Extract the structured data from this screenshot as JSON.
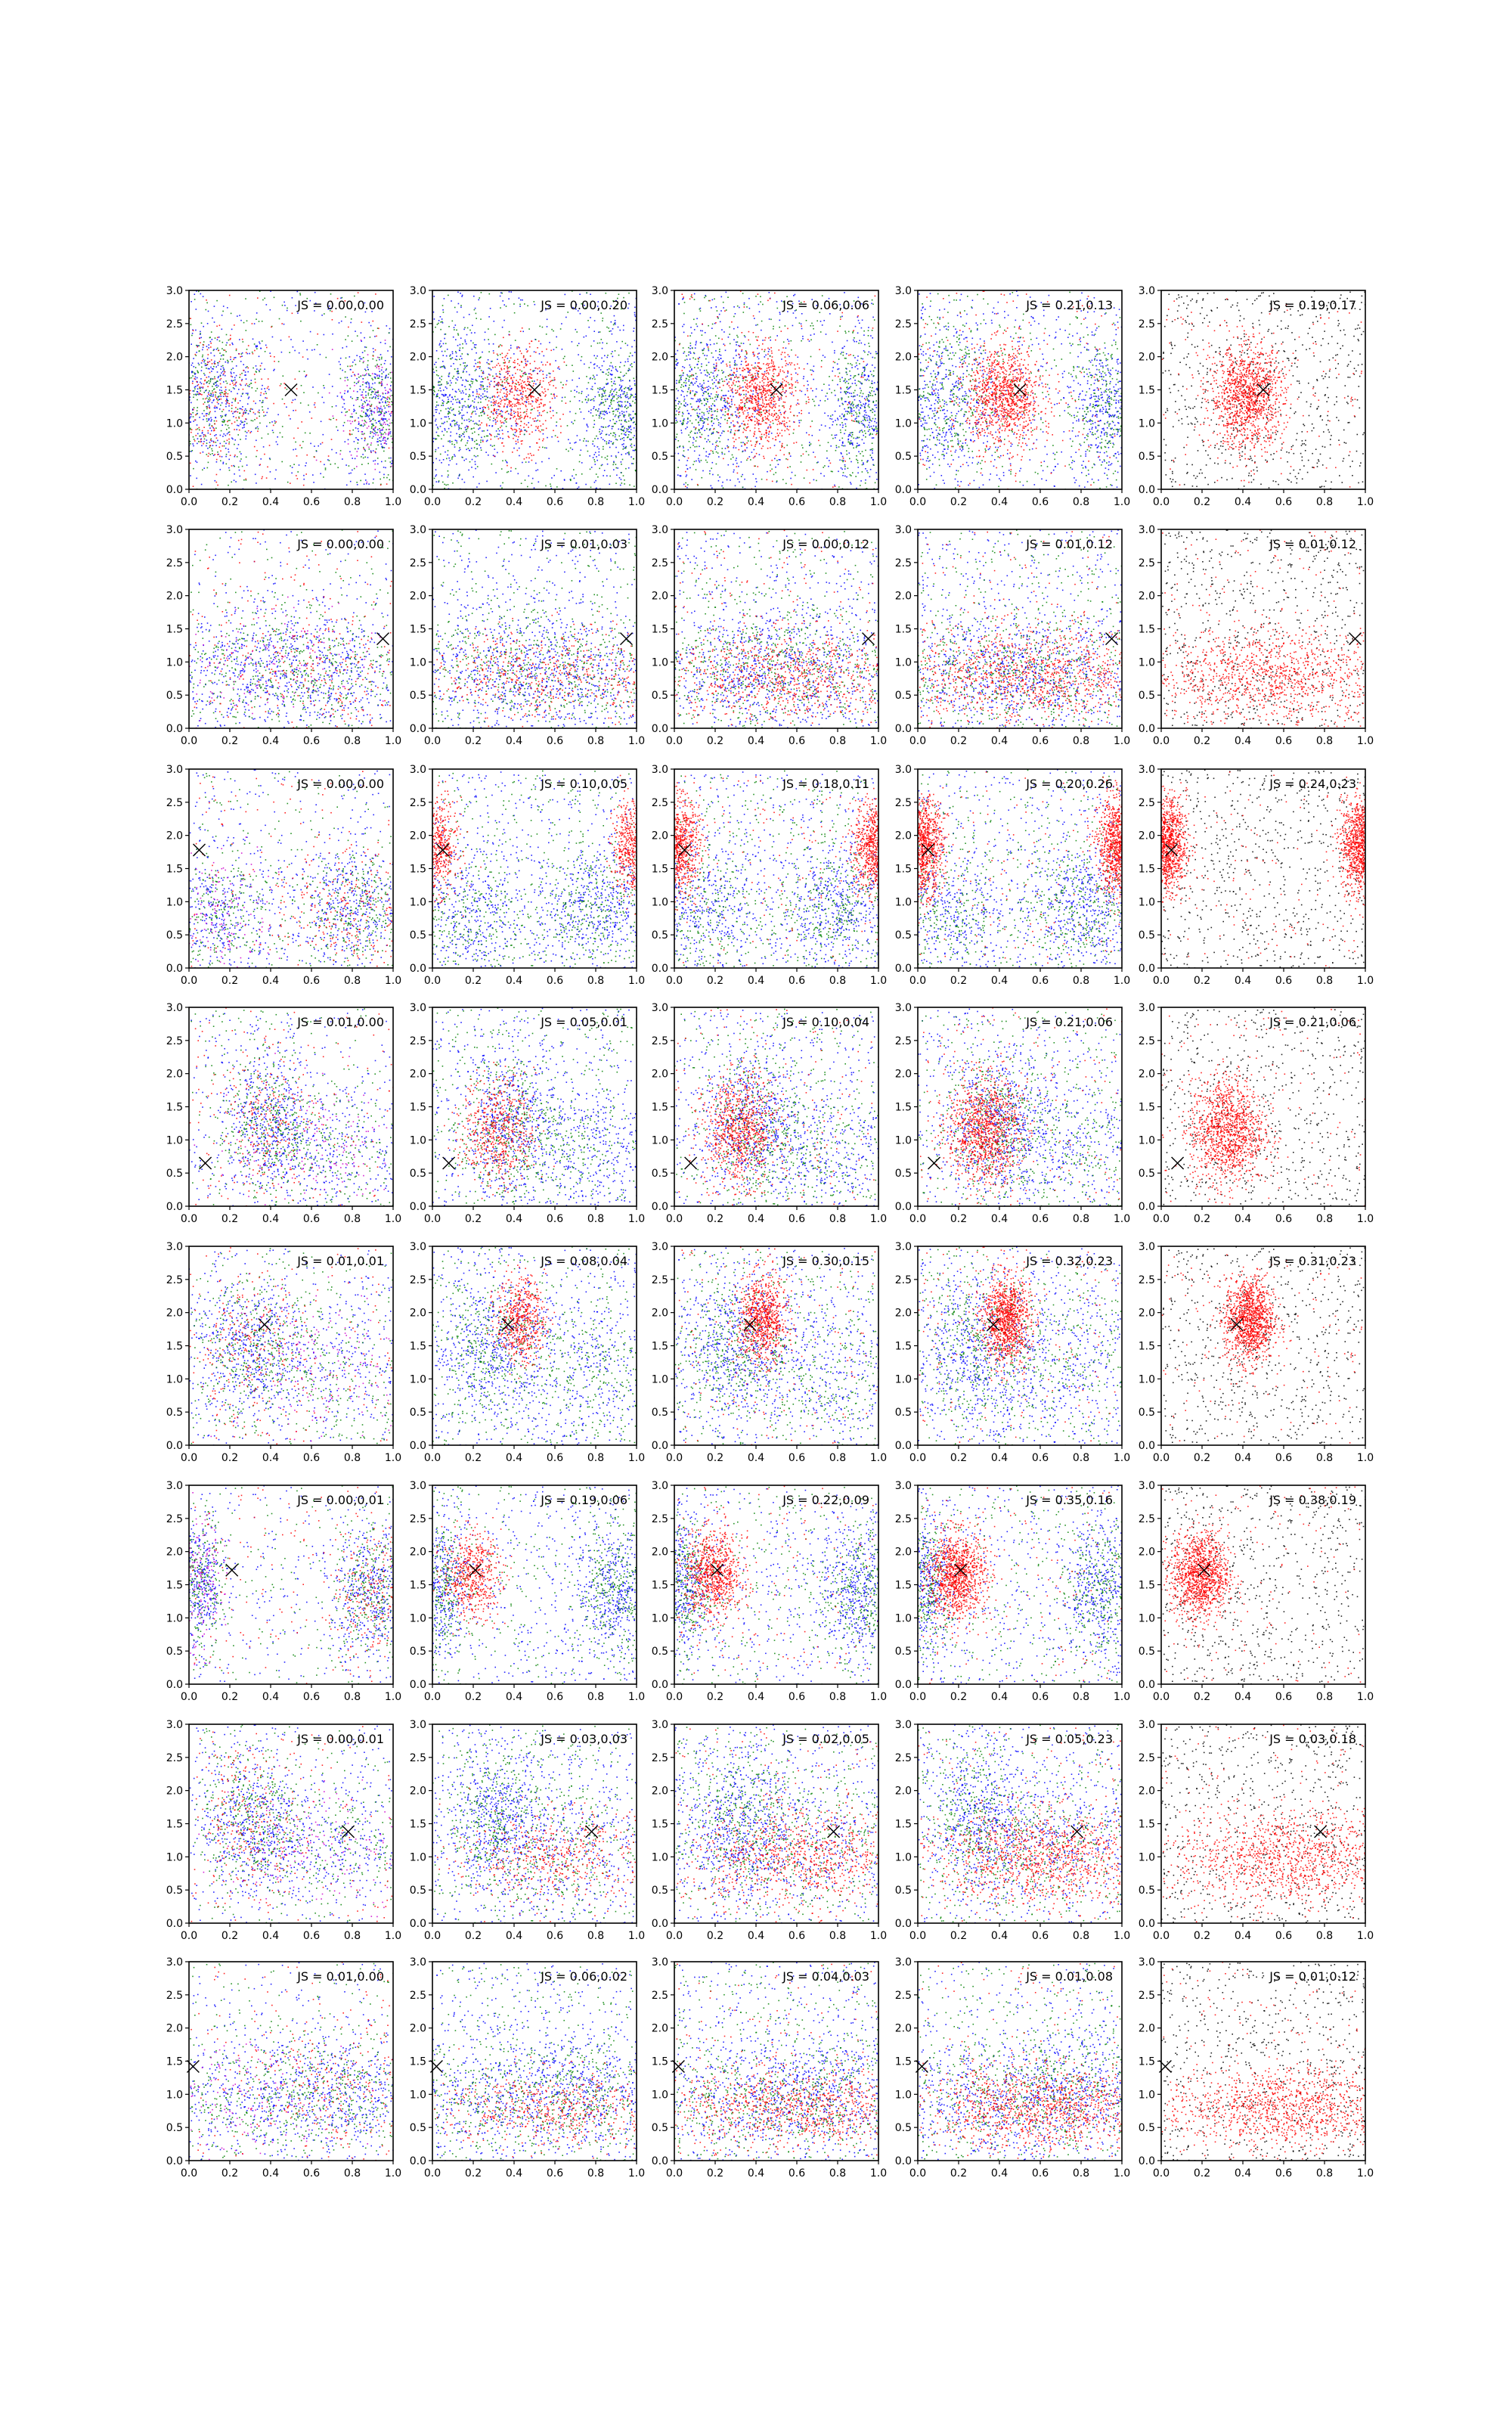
{
  "chart_data": {
    "type": "scatter",
    "grid": false,
    "layout": {
      "rows": 8,
      "cols": 5
    },
    "xlim": [
      0.0,
      1.0
    ],
    "ylim": [
      0.0,
      3.0
    ],
    "x_ticks": [
      "0.0",
      "0.2",
      "0.4",
      "0.6",
      "0.8",
      "1.0"
    ],
    "y_ticks": [
      "0.0",
      "0.5",
      "1.0",
      "1.5",
      "2.0",
      "2.5",
      "3.0"
    ],
    "colors": {
      "red": "#ff0000",
      "green": "#008000",
      "blue": "#0000ff",
      "black": "#000000",
      "magenta": "#cc00cc"
    },
    "rows": [
      {
        "marker": {
          "x": 0.5,
          "y": 1.5
        },
        "labels": [
          "JS = 0.00,0.00",
          "JS = 0.00,0.20",
          "JS = 0.06,0.06",
          "JS = 0.21,0.13",
          "JS = 0.19,0.17"
        ],
        "red_cluster": {
          "cx": 0.42,
          "cy": 1.4,
          "sx": 0.09,
          "sy": 0.38
        },
        "bg_cluster": {
          "cx": 0.12,
          "cy": 1.35,
          "sx": 0.14,
          "sy": 0.55
        },
        "bg_cluster2": {
          "cx": 0.92,
          "cy": 1.2,
          "sx": 0.09,
          "sy": 0.5
        }
      },
      {
        "marker": {
          "x": 0.95,
          "y": 1.35
        },
        "labels": [
          "JS = 0.00,0.00",
          "JS = 0.01,0.03",
          "JS = 0.00,0.12",
          "JS = 0.01,0.12",
          "JS = 0.01,0.12"
        ],
        "red_cluster": {
          "cx": 0.55,
          "cy": 0.8,
          "sx": 0.32,
          "sy": 0.35
        },
        "bg_cluster": {
          "cx": 0.65,
          "cy": 0.85,
          "sx": 0.3,
          "sy": 0.45
        },
        "bg_cluster2": {
          "cx": 0.3,
          "cy": 0.9,
          "sx": 0.3,
          "sy": 0.45
        }
      },
      {
        "marker": {
          "x": 0.05,
          "y": 1.78
        },
        "labels": [
          "JS = 0.00,0.00",
          "JS = 0.10,0.05",
          "JS = 0.18,0.11",
          "JS = 0.20,0.26",
          "JS = 0.24,0.23"
        ],
        "red_cluster": {
          "cx": 0.02,
          "cy": 1.85,
          "sx": 0.05,
          "sy": 0.35
        },
        "red_cluster2": {
          "cx": 0.98,
          "cy": 1.85,
          "sx": 0.05,
          "sy": 0.35
        },
        "bg_cluster": {
          "cx": 0.8,
          "cy": 0.95,
          "sx": 0.15,
          "sy": 0.45
        },
        "bg_cluster2": {
          "cx": 0.15,
          "cy": 0.8,
          "sx": 0.15,
          "sy": 0.5
        }
      },
      {
        "marker": {
          "x": 0.08,
          "y": 0.65
        },
        "labels": [
          "JS = 0.01,0.00",
          "JS = 0.05,0.01",
          "JS = 0.10,0.04",
          "JS = 0.21,0.06",
          "JS = 0.21,0.06"
        ],
        "red_cluster": {
          "cx": 0.32,
          "cy": 1.15,
          "sx": 0.09,
          "sy": 0.4
        },
        "bg_cluster": {
          "cx": 0.38,
          "cy": 1.25,
          "sx": 0.12,
          "sy": 0.55
        },
        "bg_cluster2": {
          "cx": 0.7,
          "cy": 0.9,
          "sx": 0.25,
          "sy": 0.5
        }
      },
      {
        "marker": {
          "x": 0.37,
          "y": 1.82
        },
        "labels": [
          "JS = 0.01,0.01",
          "JS = 0.08,0.04",
          "JS = 0.30,0.15",
          "JS = 0.32,0.23",
          "JS = 0.31,0.23"
        ],
        "red_cluster": {
          "cx": 0.43,
          "cy": 1.9,
          "sx": 0.06,
          "sy": 0.32
        },
        "bg_cluster": {
          "cx": 0.28,
          "cy": 1.45,
          "sx": 0.14,
          "sy": 0.55
        },
        "bg_cluster2": {
          "cx": 0.7,
          "cy": 1.2,
          "sx": 0.25,
          "sy": 0.6
        }
      },
      {
        "marker": {
          "x": 0.21,
          "y": 1.72
        },
        "labels": [
          "JS = 0.00,0.01",
          "JS = 0.19,0.06",
          "JS = 0.22,0.09",
          "JS = 0.35,0.16",
          "JS = 0.38,0.19"
        ],
        "red_cluster": {
          "cx": 0.19,
          "cy": 1.65,
          "sx": 0.07,
          "sy": 0.32
        },
        "bg_cluster": {
          "cx": 0.9,
          "cy": 1.4,
          "sx": 0.1,
          "sy": 0.5
        },
        "bg_cluster2": {
          "cx": 0.05,
          "cy": 1.5,
          "sx": 0.06,
          "sy": 0.5
        }
      },
      {
        "marker": {
          "x": 0.78,
          "y": 1.38
        },
        "labels": [
          "JS = 0.00,0.01",
          "JS = 0.03,0.03",
          "JS = 0.02,0.05",
          "JS = 0.05,0.23",
          "JS = 0.03,0.18"
        ],
        "red_cluster": {
          "cx": 0.62,
          "cy": 1.0,
          "sx": 0.28,
          "sy": 0.35
        },
        "bg_cluster": {
          "cx": 0.3,
          "cy": 1.55,
          "sx": 0.12,
          "sy": 0.55
        },
        "bg_cluster2": {
          "cx": 0.65,
          "cy": 1.2,
          "sx": 0.25,
          "sy": 0.5
        }
      },
      {
        "marker": {
          "x": 0.02,
          "y": 1.42
        },
        "labels": [
          "JS = 0.01,0.00",
          "JS = 0.06,0.02",
          "JS = 0.04,0.03",
          "JS = 0.01,0.08",
          "JS = 0.01,0.12"
        ],
        "red_cluster": {
          "cx": 0.6,
          "cy": 0.8,
          "sx": 0.3,
          "sy": 0.3
        },
        "bg_cluster": {
          "cx": 0.75,
          "cy": 1.05,
          "sx": 0.2,
          "sy": 0.45
        },
        "bg_cluster2": {
          "cx": 0.3,
          "cy": 0.9,
          "sx": 0.25,
          "sy": 0.45
        }
      }
    ]
  }
}
